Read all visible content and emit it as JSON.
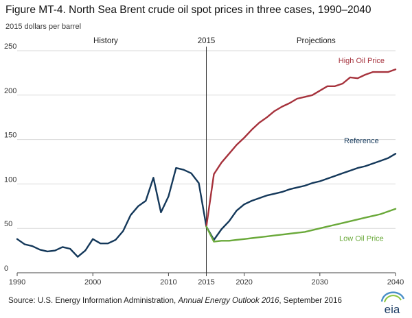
{
  "header": {
    "title": "Figure MT-4. North Sea Brent crude oil spot prices in three cases, 1990–2040",
    "unit_label": "2015 dollars per barrel"
  },
  "source": {
    "prefix": "Source: U.S. Energy Information Administration, ",
    "publication": "Annual Energy Outlook 2016",
    "suffix": ", September 2016"
  },
  "logo": {
    "text": "eia"
  },
  "colors": {
    "reference": "#14385a",
    "high": "#a6323c",
    "low": "#6aa93a",
    "axis": "#444444",
    "grid": "#d9d9d9",
    "divider": "#333333"
  },
  "chart_data": {
    "type": "line",
    "ylim": [
      0,
      250
    ],
    "xlim": [
      1990,
      2040
    ],
    "yticks": [
      0,
      50,
      100,
      150,
      200,
      250
    ],
    "xticks": [
      1990,
      2000,
      2010,
      2015,
      2020,
      2030,
      2040
    ],
    "grid": "horizontal",
    "divider_year": 2015,
    "region_labels": [
      {
        "text": "History",
        "x": 2001.7
      },
      {
        "text": "2015",
        "x": 2015
      },
      {
        "text": "Projections",
        "x": 2029.5
      }
    ],
    "series": [
      {
        "name": "Reference",
        "key": "reference",
        "label_x": 2035.5,
        "label_y": 146,
        "x": [
          1990,
          1991,
          1992,
          1993,
          1994,
          1995,
          1996,
          1997,
          1998,
          1999,
          2000,
          2001,
          2002,
          2003,
          2004,
          2005,
          2006,
          2007,
          2008,
          2009,
          2010,
          2011,
          2012,
          2013,
          2014,
          2015,
          2016,
          2017,
          2018,
          2019,
          2020,
          2021,
          2022,
          2023,
          2024,
          2025,
          2026,
          2027,
          2028,
          2029,
          2030,
          2031,
          2032,
          2033,
          2034,
          2035,
          2036,
          2037,
          2038,
          2039,
          2040
        ],
        "y": [
          38,
          32,
          30,
          26,
          24,
          25,
          29,
          27,
          18,
          25,
          38,
          33,
          33,
          37,
          47,
          65,
          75,
          81,
          107,
          68,
          86,
          118,
          116,
          112,
          101,
          52,
          37,
          49,
          58,
          70,
          77,
          81,
          84,
          87,
          89,
          91,
          94,
          96,
          98,
          101,
          103,
          106,
          109,
          112,
          115,
          118,
          120,
          123,
          126,
          129,
          134
        ]
      },
      {
        "name": "High Oil Price",
        "key": "high",
        "label_x": 2035.5,
        "label_y": 236,
        "x": [
          2015,
          2016,
          2017,
          2018,
          2019,
          2020,
          2021,
          2022,
          2023,
          2024,
          2025,
          2026,
          2027,
          2028,
          2029,
          2030,
          2031,
          2032,
          2033,
          2034,
          2035,
          2036,
          2037,
          2038,
          2039,
          2040
        ],
        "y": [
          52,
          111,
          124,
          134,
          144,
          152,
          161,
          169,
          175,
          182,
          187,
          191,
          196,
          198,
          200,
          205,
          210,
          210,
          213,
          220,
          219,
          223,
          226,
          226,
          226,
          229
        ]
      },
      {
        "name": "Low Oil Price",
        "key": "low",
        "label_x": 2035.5,
        "label_y": 36,
        "x": [
          2015,
          2016,
          2017,
          2018,
          2019,
          2020,
          2021,
          2022,
          2023,
          2024,
          2025,
          2026,
          2027,
          2028,
          2029,
          2030,
          2031,
          2032,
          2033,
          2034,
          2035,
          2036,
          2037,
          2038,
          2039,
          2040
        ],
        "y": [
          52,
          35,
          36,
          36,
          37,
          38,
          39,
          40,
          41,
          42,
          43,
          44,
          45,
          46,
          48,
          50,
          52,
          54,
          56,
          58,
          60,
          62,
          64,
          66,
          69,
          72
        ]
      }
    ]
  }
}
